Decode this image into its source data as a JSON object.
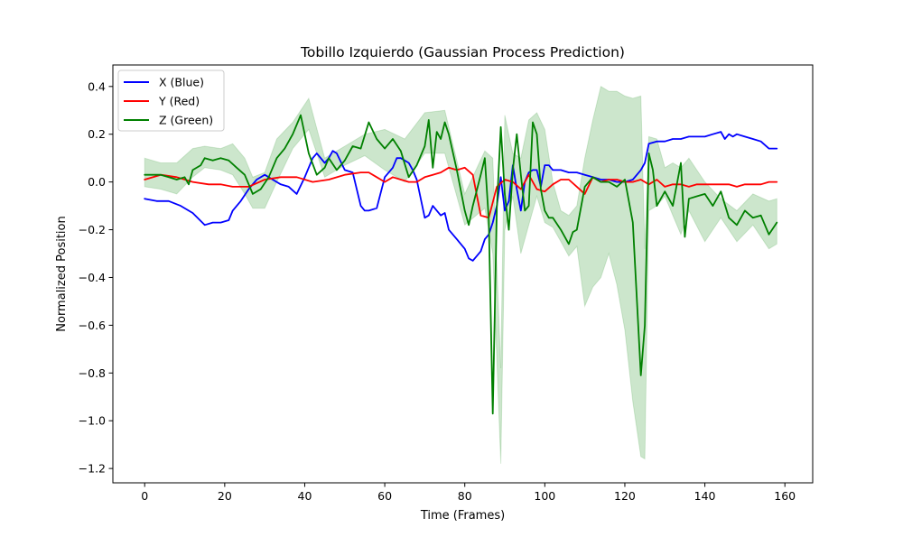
{
  "chart_data": {
    "type": "line",
    "title": "Tobillo Izquierdo (Gaussian Process Prediction)",
    "xlabel": "Time (Frames)",
    "ylabel": "Normalized Position",
    "xlim": [
      -7.95,
      166.95
    ],
    "ylim": [
      -1.26,
      0.49
    ],
    "xticks": [
      0,
      20,
      40,
      60,
      80,
      100,
      120,
      140,
      160
    ],
    "yticks": [
      -1.2,
      -1.0,
      -0.8,
      -0.6,
      -0.4,
      -0.2,
      0.0,
      0.2,
      0.4
    ],
    "xtick_labels": [
      "0",
      "20",
      "40",
      "60",
      "80",
      "100",
      "120",
      "140",
      "160"
    ],
    "ytick_labels": [
      "−1.2",
      "−1.0",
      "−0.8",
      "−0.6",
      "−0.4",
      "−0.2",
      "0.0",
      "0.2",
      "0.4"
    ],
    "grid": false,
    "legend_position": "top-left",
    "series": [
      {
        "name": "X (Blue)",
        "color": "#0000ff",
        "x": [
          0,
          3,
          6,
          9,
          12,
          15,
          17,
          19,
          21,
          22,
          24,
          26,
          28,
          30,
          32,
          34,
          36,
          38,
          40,
          42,
          43,
          45,
          46,
          47,
          48,
          50,
          52,
          54,
          55,
          56,
          58,
          60,
          62,
          63,
          64,
          66,
          67,
          68,
          70,
          71,
          72,
          74,
          75,
          76,
          78,
          80,
          81,
          82,
          84,
          85,
          86,
          87,
          88,
          89,
          90,
          91,
          92,
          93,
          94,
          95,
          96,
          97,
          98,
          99,
          100,
          101,
          102,
          104,
          106,
          108,
          110,
          112,
          114,
          116,
          118,
          120,
          122,
          124,
          125,
          126,
          128,
          130,
          132,
          134,
          136,
          138,
          140,
          142,
          144,
          145,
          146,
          147,
          148,
          150,
          152,
          154,
          156,
          158
        ],
        "y": [
          -0.07,
          -0.08,
          -0.08,
          -0.1,
          -0.13,
          -0.18,
          -0.17,
          -0.17,
          -0.16,
          -0.12,
          -0.08,
          -0.03,
          0.01,
          0.03,
          0.01,
          -0.01,
          -0.02,
          -0.05,
          0.02,
          0.1,
          0.12,
          0.08,
          0.1,
          0.13,
          0.12,
          0.05,
          0.04,
          -0.1,
          -0.12,
          -0.12,
          -0.11,
          0.02,
          0.06,
          0.1,
          0.1,
          0.08,
          0.05,
          0.01,
          -0.15,
          -0.14,
          -0.1,
          -0.14,
          -0.13,
          -0.2,
          -0.24,
          -0.28,
          -0.32,
          -0.33,
          -0.29,
          -0.24,
          -0.22,
          -0.17,
          -0.1,
          0.02,
          -0.12,
          -0.08,
          0.07,
          -0.03,
          -0.12,
          0.0,
          0.04,
          0.05,
          0.05,
          -0.02,
          0.07,
          0.07,
          0.05,
          0.05,
          0.04,
          0.04,
          0.03,
          0.02,
          0.01,
          0.01,
          0.0,
          0.0,
          0.01,
          0.05,
          0.08,
          0.16,
          0.17,
          0.17,
          0.18,
          0.18,
          0.19,
          0.19,
          0.19,
          0.2,
          0.21,
          0.18,
          0.2,
          0.19,
          0.2,
          0.19,
          0.18,
          0.17,
          0.14,
          0.14
        ]
      },
      {
        "name": "Y (Red)",
        "color": "#ff0000",
        "x": [
          0,
          4,
          8,
          12,
          16,
          19,
          22,
          26,
          30,
          34,
          38,
          42,
          46,
          50,
          54,
          56,
          58,
          60,
          62,
          64,
          66,
          68,
          70,
          72,
          74,
          76,
          78,
          80,
          82,
          84,
          86,
          88,
          90,
          92,
          94,
          96,
          98,
          100,
          102,
          104,
          106,
          108,
          110,
          112,
          114,
          116,
          118,
          120,
          122,
          124,
          126,
          128,
          130,
          132,
          134,
          136,
          138,
          140,
          142,
          144,
          146,
          148,
          150,
          152,
          154,
          156,
          158
        ],
        "y": [
          0.01,
          0.03,
          0.02,
          0.0,
          -0.01,
          -0.01,
          -0.02,
          -0.02,
          0.01,
          0.02,
          0.02,
          0.0,
          0.01,
          0.03,
          0.04,
          0.04,
          0.02,
          0.0,
          0.02,
          0.01,
          0.0,
          0.0,
          0.02,
          0.03,
          0.04,
          0.06,
          0.05,
          0.06,
          0.03,
          -0.14,
          -0.15,
          -0.02,
          0.01,
          0.0,
          -0.03,
          0.03,
          -0.03,
          -0.04,
          -0.01,
          0.01,
          0.01,
          -0.02,
          -0.05,
          0.02,
          0.0,
          0.01,
          0.01,
          0.0,
          0.0,
          0.01,
          -0.01,
          0.01,
          -0.02,
          -0.01,
          -0.01,
          -0.02,
          -0.01,
          -0.01,
          -0.01,
          -0.01,
          -0.01,
          -0.02,
          -0.01,
          -0.01,
          -0.01,
          0.0,
          0.0
        ]
      },
      {
        "name": "Z (Green)",
        "color": "#008000",
        "x": [
          0,
          2,
          4,
          6,
          8,
          10,
          11,
          12,
          14,
          15,
          17,
          19,
          21,
          23,
          25,
          27,
          29,
          31,
          33,
          35,
          37,
          39,
          41,
          43,
          45,
          46,
          48,
          50,
          52,
          54,
          56,
          58,
          60,
          62,
          64,
          66,
          68,
          70,
          71,
          72,
          73,
          74,
          75,
          76,
          78,
          80,
          81,
          82,
          84,
          85,
          86,
          87,
          88,
          89,
          90,
          91,
          92,
          93,
          94,
          95,
          96,
          97,
          98,
          99,
          100,
          101,
          102,
          104,
          106,
          107,
          108,
          110,
          112,
          114,
          116,
          118,
          120,
          122,
          124,
          125,
          126,
          127,
          128,
          130,
          132,
          134,
          135,
          136,
          138,
          140,
          142,
          144,
          146,
          148,
          150,
          152,
          154,
          156,
          158
        ],
        "y": [
          0.03,
          0.03,
          0.03,
          0.02,
          0.01,
          0.02,
          -0.01,
          0.05,
          0.07,
          0.1,
          0.09,
          0.1,
          0.09,
          0.06,
          0.03,
          -0.05,
          -0.03,
          0.02,
          0.1,
          0.14,
          0.2,
          0.28,
          0.12,
          0.03,
          0.06,
          0.1,
          0.05,
          0.09,
          0.15,
          0.14,
          0.25,
          0.18,
          0.14,
          0.18,
          0.13,
          0.02,
          0.07,
          0.15,
          0.26,
          0.06,
          0.21,
          0.18,
          0.25,
          0.2,
          0.05,
          -0.12,
          -0.18,
          -0.1,
          0.03,
          0.1,
          -0.16,
          -0.97,
          -0.11,
          0.23,
          -0.05,
          -0.2,
          0.05,
          0.2,
          0.03,
          -0.12,
          -0.1,
          0.25,
          0.2,
          -0.03,
          -0.12,
          -0.15,
          -0.15,
          -0.2,
          -0.26,
          -0.21,
          -0.2,
          -0.02,
          0.02,
          0.0,
          0.0,
          -0.02,
          0.01,
          -0.17,
          -0.81,
          -0.6,
          0.12,
          0.05,
          -0.1,
          -0.04,
          -0.1,
          0.08,
          -0.23,
          -0.07,
          -0.06,
          -0.05,
          -0.1,
          -0.04,
          -0.15,
          -0.18,
          -0.12,
          -0.15,
          -0.14,
          -0.22,
          -0.17
        ]
      }
    ],
    "confidence_band": {
      "series": "Z (Green)",
      "color": "#008000",
      "opacity": 0.2,
      "x": [
        0,
        4,
        8,
        12,
        15,
        19,
        22,
        25,
        27,
        30,
        33,
        37,
        41,
        45,
        50,
        55,
        60,
        65,
        70,
        75,
        80,
        85,
        87,
        89,
        90,
        92,
        94,
        96,
        98,
        100,
        102,
        104,
        106,
        108,
        110,
        112,
        114,
        116,
        118,
        120,
        122,
        124,
        125,
        126,
        128,
        130,
        132,
        134,
        136,
        140,
        144,
        148,
        152,
        156,
        158
      ],
      "lower": [
        -0.02,
        -0.03,
        -0.05,
        0.02,
        0.06,
        0.05,
        0.03,
        -0.05,
        -0.11,
        -0.11,
        0.0,
        0.14,
        0.22,
        0.02,
        0.07,
        0.11,
        0.05,
        0.0,
        0.12,
        0.12,
        -0.18,
        -0.11,
        -0.3,
        -1.18,
        -0.2,
        -0.06,
        -0.3,
        -0.18,
        -0.06,
        -0.17,
        -0.19,
        -0.25,
        -0.31,
        -0.27,
        -0.52,
        -0.44,
        -0.4,
        -0.3,
        -0.43,
        -0.62,
        -0.92,
        -1.15,
        -1.16,
        -0.12,
        -0.1,
        -0.06,
        -0.14,
        -0.22,
        -0.12,
        -0.25,
        -0.15,
        -0.25,
        -0.18,
        -0.28,
        -0.26
      ],
      "upper": [
        0.1,
        0.08,
        0.08,
        0.14,
        0.15,
        0.14,
        0.16,
        0.1,
        0.02,
        0.04,
        0.18,
        0.25,
        0.35,
        0.1,
        0.15,
        0.2,
        0.22,
        0.18,
        0.29,
        0.3,
        -0.05,
        0.13,
        0.1,
        -0.78,
        0.28,
        0.12,
        0.1,
        0.26,
        0.29,
        0.22,
        0.0,
        -0.12,
        -0.14,
        -0.1,
        0.1,
        0.26,
        0.4,
        0.38,
        0.38,
        0.36,
        0.35,
        0.36,
        -0.28,
        0.19,
        0.18,
        0.06,
        0.08,
        0.06,
        0.1,
        0.0,
        -0.07,
        -0.12,
        -0.05,
        -0.08,
        -0.07
      ]
    }
  }
}
